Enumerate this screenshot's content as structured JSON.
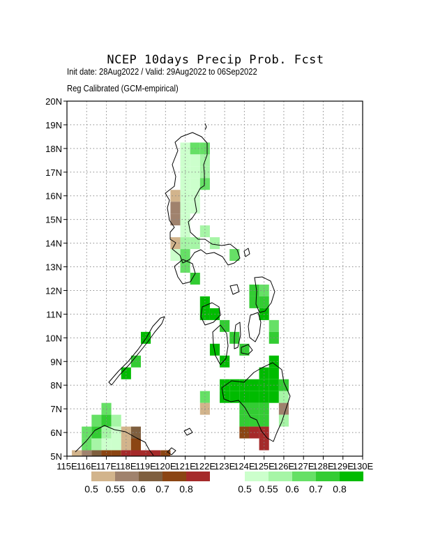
{
  "title": "NCEP 10days Precip Prob. Fcst",
  "subtitle": "Init date: 28Aug2022 / Valid: 29Aug2022 to 06Sep2022",
  "method": "Reg Calibrated (GCM-empirical)",
  "axes": {
    "lon_ticks": [
      "115E",
      "116E",
      "117E",
      "118E",
      "119E",
      "120E",
      "121E",
      "122E",
      "123E",
      "124E",
      "125E",
      "126E",
      "127E",
      "128E",
      "129E",
      "130E"
    ],
    "lat_ticks": [
      "20N",
      "19N",
      "18N",
      "17N",
      "16N",
      "15N",
      "14N",
      "13N",
      "12N",
      "11N",
      "10N",
      "9N",
      "8N",
      "7N",
      "6N",
      "5N"
    ],
    "lon_range": [
      115,
      130
    ],
    "lat_range": [
      5,
      20
    ],
    "grid": "dotted"
  },
  "legend": {
    "dry": {
      "labels": [
        "0.5",
        "0.55",
        "0.6",
        "0.7",
        "0.8"
      ],
      "colors": [
        "#d2b48c",
        "#a0826d",
        "#7f5f3f",
        "#8b4513",
        "#a52a2a"
      ]
    },
    "wet": {
      "labels": [
        "0.5",
        "0.55",
        "0.6",
        "0.7",
        "0.8"
      ],
      "colors": [
        "#ccffcc",
        "#a6f5a6",
        "#66e066",
        "#33cc33",
        "#00bb00"
      ]
    }
  },
  "chart_data": {
    "type": "heatmap",
    "title": "NCEP 10days Precip Prob. Fcst",
    "xlabel": "",
    "ylabel": "",
    "xlim": [
      115,
      130
    ],
    "ylim": [
      5,
      20
    ],
    "cell_size_deg": 0.5,
    "cells": [
      {
        "lon": 121.0,
        "lat": 18.0,
        "cat": "wet1"
      },
      {
        "lon": 121.5,
        "lat": 18.0,
        "cat": "wet3"
      },
      {
        "lon": 122.0,
        "lat": 18.0,
        "cat": "wet3"
      },
      {
        "lon": 121.0,
        "lat": 17.5,
        "cat": "wet1"
      },
      {
        "lon": 121.5,
        "lat": 17.5,
        "cat": "wet1"
      },
      {
        "lon": 122.0,
        "lat": 17.5,
        "cat": "wet2"
      },
      {
        "lon": 121.0,
        "lat": 17.0,
        "cat": "wet1"
      },
      {
        "lon": 121.5,
        "lat": 17.0,
        "cat": "wet1"
      },
      {
        "lon": 122.0,
        "lat": 17.0,
        "cat": "wet2"
      },
      {
        "lon": 121.0,
        "lat": 16.5,
        "cat": "wet1"
      },
      {
        "lon": 121.5,
        "lat": 16.5,
        "cat": "wet1"
      },
      {
        "lon": 122.0,
        "lat": 16.5,
        "cat": "wet3"
      },
      {
        "lon": 120.5,
        "lat": 16.0,
        "cat": "dry1"
      },
      {
        "lon": 121.0,
        "lat": 16.0,
        "cat": "wet1"
      },
      {
        "lon": 121.5,
        "lat": 16.0,
        "cat": "wet1"
      },
      {
        "lon": 120.5,
        "lat": 15.5,
        "cat": "dry2"
      },
      {
        "lon": 121.0,
        "lat": 15.5,
        "cat": "wet1"
      },
      {
        "lon": 121.5,
        "lat": 15.5,
        "cat": "wet1"
      },
      {
        "lon": 120.5,
        "lat": 15.0,
        "cat": "dry2"
      },
      {
        "lon": 121.0,
        "lat": 15.0,
        "cat": "wet1"
      },
      {
        "lon": 121.0,
        "lat": 14.5,
        "cat": "wet1"
      },
      {
        "lon": 122.0,
        "lat": 14.5,
        "cat": "wet2"
      },
      {
        "lon": 120.5,
        "lat": 14.0,
        "cat": "dry1"
      },
      {
        "lon": 121.0,
        "lat": 14.0,
        "cat": "wet2"
      },
      {
        "lon": 121.5,
        "lat": 14.0,
        "cat": "wet2"
      },
      {
        "lon": 122.5,
        "lat": 14.0,
        "cat": "wet2"
      },
      {
        "lon": 120.5,
        "lat": 13.5,
        "cat": "wet1"
      },
      {
        "lon": 121.0,
        "lat": 13.5,
        "cat": "wet3"
      },
      {
        "lon": 123.5,
        "lat": 13.5,
        "cat": "wet3"
      },
      {
        "lon": 121.0,
        "lat": 13.0,
        "cat": "wet3"
      },
      {
        "lon": 121.5,
        "lat": 12.5,
        "cat": "wet4"
      },
      {
        "lon": 124.5,
        "lat": 12.0,
        "cat": "wet4"
      },
      {
        "lon": 125.0,
        "lat": 12.0,
        "cat": "wet3"
      },
      {
        "lon": 122.0,
        "lat": 11.5,
        "cat": "wet5"
      },
      {
        "lon": 124.5,
        "lat": 11.5,
        "cat": "wet4"
      },
      {
        "lon": 125.0,
        "lat": 11.5,
        "cat": "wet4"
      },
      {
        "lon": 122.0,
        "lat": 11.0,
        "cat": "wet5"
      },
      {
        "lon": 122.5,
        "lat": 11.0,
        "cat": "wet5"
      },
      {
        "lon": 125.0,
        "lat": 11.0,
        "cat": "wet5"
      },
      {
        "lon": 123.0,
        "lat": 10.5,
        "cat": "wet4"
      },
      {
        "lon": 125.5,
        "lat": 10.5,
        "cat": "wet3"
      },
      {
        "lon": 123.5,
        "lat": 10.0,
        "cat": "wet4"
      },
      {
        "lon": 125.5,
        "lat": 10.0,
        "cat": "wet4"
      },
      {
        "lon": 122.5,
        "lat": 9.5,
        "cat": "wet5"
      },
      {
        "lon": 124.0,
        "lat": 9.5,
        "cat": "wet4"
      },
      {
        "lon": 123.0,
        "lat": 9.0,
        "cat": "wet5"
      },
      {
        "lon": 125.5,
        "lat": 9.0,
        "cat": "wet5"
      },
      {
        "lon": 125.0,
        "lat": 8.5,
        "cat": "wet5"
      },
      {
        "lon": 125.5,
        "lat": 8.5,
        "cat": "wet5"
      },
      {
        "lon": 123.0,
        "lat": 8.0,
        "cat": "wet5"
      },
      {
        "lon": 123.5,
        "lat": 8.0,
        "cat": "wet5"
      },
      {
        "lon": 124.0,
        "lat": 8.0,
        "cat": "wet5"
      },
      {
        "lon": 124.5,
        "lat": 8.0,
        "cat": "wet5"
      },
      {
        "lon": 125.0,
        "lat": 8.0,
        "cat": "wet5"
      },
      {
        "lon": 125.5,
        "lat": 8.0,
        "cat": "wet5"
      },
      {
        "lon": 126.0,
        "lat": 8.0,
        "cat": "wet4"
      },
      {
        "lon": 122.0,
        "lat": 7.5,
        "cat": "wet3"
      },
      {
        "lon": 123.0,
        "lat": 7.5,
        "cat": "wet5"
      },
      {
        "lon": 123.5,
        "lat": 7.5,
        "cat": "wet5"
      },
      {
        "lon": 124.0,
        "lat": 7.5,
        "cat": "wet5"
      },
      {
        "lon": 124.5,
        "lat": 7.5,
        "cat": "wet5"
      },
      {
        "lon": 125.0,
        "lat": 7.5,
        "cat": "wet5"
      },
      {
        "lon": 125.5,
        "lat": 7.5,
        "cat": "wet5"
      },
      {
        "lon": 126.0,
        "lat": 7.5,
        "cat": "wet2"
      },
      {
        "lon": 122.0,
        "lat": 7.0,
        "cat": "dry1"
      },
      {
        "lon": 124.0,
        "lat": 7.0,
        "cat": "wet4"
      },
      {
        "lon": 124.5,
        "lat": 7.0,
        "cat": "wet4"
      },
      {
        "lon": 125.0,
        "lat": 7.0,
        "cat": "wet4"
      },
      {
        "lon": 126.0,
        "lat": 7.0,
        "cat": "dry2"
      },
      {
        "lon": 124.0,
        "lat": 6.5,
        "cat": "wet4"
      },
      {
        "lon": 124.5,
        "lat": 6.5,
        "cat": "wet4"
      },
      {
        "lon": 125.0,
        "lat": 6.5,
        "cat": "wet4"
      },
      {
        "lon": 126.0,
        "lat": 6.5,
        "cat": "wet2"
      },
      {
        "lon": 124.0,
        "lat": 6.0,
        "cat": "dry4"
      },
      {
        "lon": 124.5,
        "lat": 6.0,
        "cat": "dry5"
      },
      {
        "lon": 125.0,
        "lat": 6.0,
        "cat": "dry5"
      },
      {
        "lon": 125.0,
        "lat": 5.5,
        "cat": "dry5"
      },
      {
        "lon": 119.0,
        "lat": 10.0,
        "cat": "wet5"
      },
      {
        "lon": 118.5,
        "lat": 9.0,
        "cat": "wet4"
      },
      {
        "lon": 118.0,
        "lat": 8.5,
        "cat": "wet5"
      },
      {
        "lon": 117.0,
        "lat": 7.0,
        "cat": "wet3"
      },
      {
        "lon": 116.5,
        "lat": 6.5,
        "cat": "wet3"
      },
      {
        "lon": 117.0,
        "lat": 6.5,
        "cat": "wet4"
      },
      {
        "lon": 117.5,
        "lat": 6.5,
        "cat": "wet2"
      },
      {
        "lon": 116.0,
        "lat": 6.0,
        "cat": "wet3"
      },
      {
        "lon": 116.5,
        "lat": 6.0,
        "cat": "wet4"
      },
      {
        "lon": 117.0,
        "lat": 6.0,
        "cat": "wet2"
      },
      {
        "lon": 117.5,
        "lat": 6.0,
        "cat": "wet1"
      },
      {
        "lon": 118.0,
        "lat": 6.0,
        "cat": "dry1"
      },
      {
        "lon": 118.5,
        "lat": 6.0,
        "cat": "dry3"
      },
      {
        "lon": 116.0,
        "lat": 5.5,
        "cat": "wet3"
      },
      {
        "lon": 116.5,
        "lat": 5.5,
        "cat": "wet2"
      },
      {
        "lon": 117.0,
        "lat": 5.5,
        "cat": "wet1"
      },
      {
        "lon": 117.5,
        "lat": 5.5,
        "cat": "wet1"
      },
      {
        "lon": 118.0,
        "lat": 5.5,
        "cat": "dry1"
      },
      {
        "lon": 118.5,
        "lat": 5.5,
        "cat": "dry4"
      },
      {
        "lon": 115.5,
        "lat": 5.0,
        "cat": "dry1"
      },
      {
        "lon": 116.0,
        "lat": 5.0,
        "cat": "dry2"
      },
      {
        "lon": 116.5,
        "lat": 5.0,
        "cat": "dry3"
      },
      {
        "lon": 117.0,
        "lat": 5.0,
        "cat": "dry4"
      },
      {
        "lon": 117.5,
        "lat": 5.0,
        "cat": "dry4"
      },
      {
        "lon": 118.0,
        "lat": 5.0,
        "cat": "dry5"
      },
      {
        "lon": 118.5,
        "lat": 5.0,
        "cat": "dry5"
      },
      {
        "lon": 119.0,
        "lat": 5.0,
        "cat": "dry5"
      },
      {
        "lon": 119.5,
        "lat": 5.0,
        "cat": "dry5"
      },
      {
        "lon": 120.0,
        "lat": 5.0,
        "cat": "dry4"
      }
    ]
  }
}
